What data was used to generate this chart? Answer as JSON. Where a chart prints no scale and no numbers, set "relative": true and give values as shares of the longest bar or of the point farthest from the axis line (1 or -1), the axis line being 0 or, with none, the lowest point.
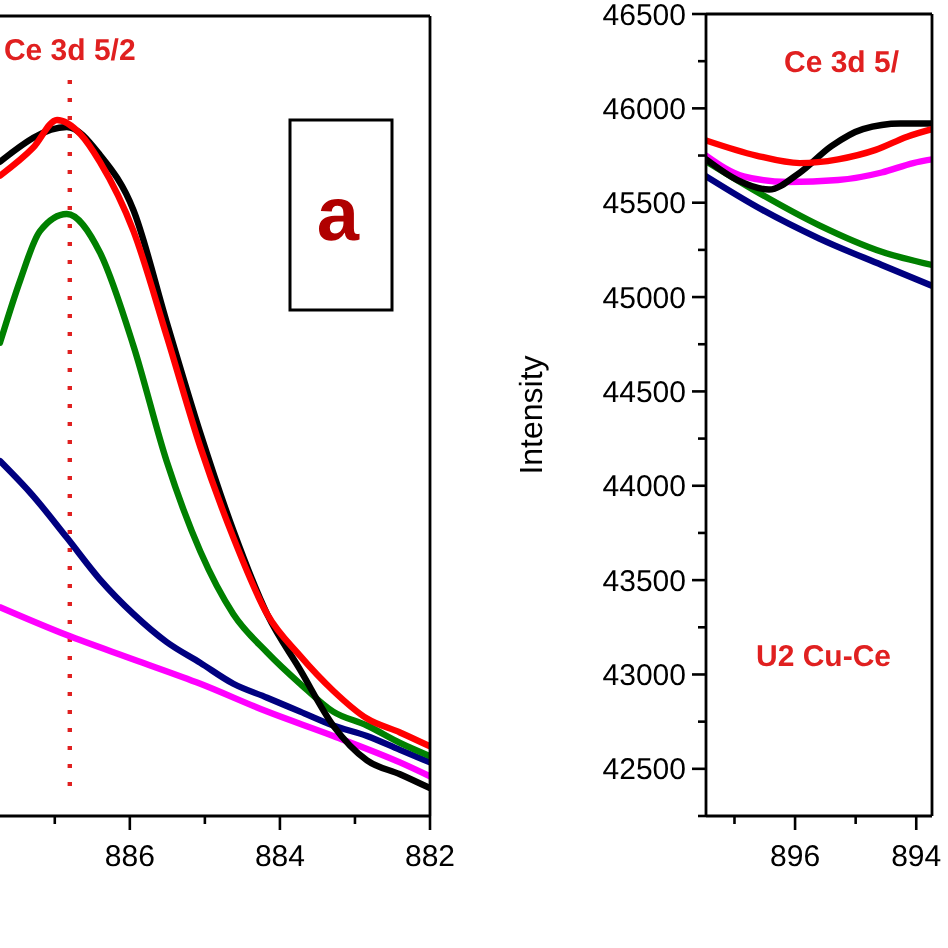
{
  "chart_data": [
    {
      "type": "line",
      "relative": true,
      "xlim": [
        887.73,
        882
      ],
      "xticks": [
        {
          "value": 887,
          "label": null
        },
        886,
        {
          "value": 885,
          "label": null
        },
        884,
        {
          "value": 883,
          "label": null
        },
        882
      ],
      "tick_labels": "x",
      "line_style": "solid",
      "grid": false,
      "ref_lines": [
        {
          "axis": "x",
          "value": 886.8,
          "label": "Ce 3d 5/2",
          "color": "#e02020",
          "line_style": "dotted"
        }
      ],
      "annotations": [
        "a"
      ],
      "series": [
        {
          "color": "#ff00ff",
          "x": [
            887.73,
            886.84,
            885.95,
            885.06,
            884.17,
            883.29,
            882.4,
            882
          ],
          "values": [
            0.3,
            0.26,
            0.225,
            0.19,
            0.15,
            0.115,
            0.077,
            0.057
          ]
        },
        {
          "color": "#000080",
          "x": [
            887.73,
            887.29,
            886.84,
            886.4,
            885.95,
            885.51,
            885.06,
            884.62,
            884.17,
            883.73,
            883.29,
            882.84,
            882.4,
            882
          ],
          "values": [
            0.51,
            0.46,
            0.4,
            0.34,
            0.29,
            0.25,
            0.22,
            0.19,
            0.17,
            0.15,
            0.13,
            0.115,
            0.095,
            0.077
          ]
        },
        {
          "color": "#008000",
          "x": [
            887.73,
            887.46,
            887.2,
            886.84,
            886.4,
            885.95,
            885.51,
            885.06,
            884.62,
            884.17,
            883.73,
            883.29,
            882.84,
            882.4,
            882
          ],
          "values": [
            0.68,
            0.77,
            0.84,
            0.865,
            0.81,
            0.675,
            0.51,
            0.38,
            0.29,
            0.235,
            0.19,
            0.15,
            0.13,
            0.105,
            0.086
          ]
        },
        {
          "color": "#000000",
          "x": [
            887.73,
            886.84,
            886.4,
            885.95,
            885.51,
            885.06,
            884.62,
            884.17,
            883.73,
            883.29,
            882.84,
            882.4,
            882
          ],
          "values": [
            0.94,
            0.99,
            0.95,
            0.87,
            0.71,
            0.55,
            0.41,
            0.29,
            0.21,
            0.13,
            0.08,
            0.06,
            0.04
          ]
        },
        {
          "color": "#ff0000",
          "x": [
            887.73,
            887.29,
            886.97,
            886.66,
            886.4,
            885.95,
            885.51,
            885.06,
            884.62,
            884.17,
            883.73,
            883.29,
            882.84,
            882.4,
            882
          ],
          "values": [
            0.92,
            0.96,
            1.0,
            0.98,
            0.94,
            0.84,
            0.69,
            0.53,
            0.4,
            0.29,
            0.23,
            0.18,
            0.14,
            0.12,
            0.1
          ]
        }
      ]
    },
    {
      "type": "line",
      "ylabel": "Intensity",
      "xlim": [
        897.47,
        893.74
      ],
      "xticks": [
        {
          "value": 897,
          "label": null
        },
        896,
        {
          "value": 895,
          "label": null
        },
        894
      ],
      "ylim": [
        42250,
        46500
      ],
      "yticks": [
        {
          "value": 42250,
          "label": null
        },
        42500,
        {
          "value": 42750,
          "label": null
        },
        43000,
        {
          "value": 43250,
          "label": null
        },
        43500,
        {
          "value": 43750,
          "label": null
        },
        44000,
        {
          "value": 44250,
          "label": null
        },
        44500,
        {
          "value": 44750,
          "label": null
        },
        45000,
        {
          "value": 45250,
          "label": null
        },
        45500,
        {
          "value": 45750,
          "label": null
        },
        46000,
        {
          "value": 46250,
          "label": null
        },
        46500
      ],
      "line_style": "solid",
      "grid": false,
      "annotations": [
        "Ce 3d 5/",
        "U2 Cu-Ce"
      ],
      "series": [
        {
          "color": "#000080",
          "x": [
            897.47,
            896.64,
            895.6,
            894.57,
            893.74
          ],
          "values": [
            45640,
            45480,
            45310,
            45170,
            45060
          ]
        },
        {
          "color": "#008000",
          "x": [
            897.47,
            896.64,
            895.6,
            894.57,
            893.74
          ],
          "values": [
            45720,
            45560,
            45380,
            45240,
            45170
          ]
        },
        {
          "color": "#ff00ff",
          "x": [
            897.47,
            896.85,
            896.12,
            895.29,
            894.57,
            894.05,
            893.74
          ],
          "values": [
            45750,
            45640,
            45610,
            45620,
            45660,
            45710,
            45730
          ]
        },
        {
          "color": "#000000",
          "x": [
            897.47,
            896.95,
            896.43,
            895.92,
            895.4,
            894.88,
            894.26,
            893.74
          ],
          "values": [
            45730,
            45620,
            45570,
            45660,
            45800,
            45890,
            45920,
            45920
          ]
        },
        {
          "color": "#ff0000",
          "x": [
            897.47,
            896.64,
            895.92,
            895.29,
            894.67,
            894.15,
            893.74
          ],
          "values": [
            45830,
            45750,
            45710,
            45730,
            45780,
            45850,
            45890
          ]
        }
      ]
    }
  ]
}
